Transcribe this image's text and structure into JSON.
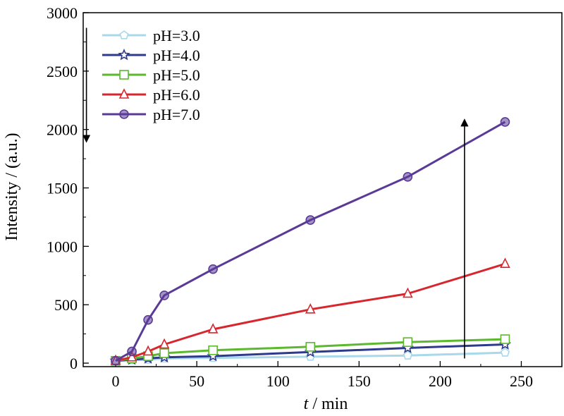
{
  "chart_data": {
    "type": "line",
    "xlabel_italic": "t",
    "xlabel_rest": " / min",
    "ylabel": "Intensity / (a.u.)",
    "xlim": [
      -20,
      275
    ],
    "ylim": [
      -30,
      3000
    ],
    "xticks": [
      0,
      50,
      100,
      150,
      200,
      250
    ],
    "yticks": [
      0,
      500,
      1000,
      1500,
      2000,
      2500,
      3000
    ],
    "grid": false,
    "legend_position": "top-left",
    "x": [
      0,
      10,
      20,
      30,
      60,
      120,
      180,
      240
    ],
    "series": [
      {
        "name": "pH=3.0",
        "color": "#a8d8ea",
        "marker": "pentagon",
        "values": [
          20,
          25,
          30,
          40,
          45,
          55,
          65,
          90
        ]
      },
      {
        "name": "pH=4.0",
        "color": "#2e3a8c",
        "marker": "star",
        "values": [
          20,
          30,
          40,
          50,
          60,
          95,
          130,
          160
        ]
      },
      {
        "name": "pH=5.0",
        "color": "#5cb82e",
        "marker": "square",
        "values": [
          20,
          40,
          60,
          85,
          110,
          140,
          180,
          205
        ]
      },
      {
        "name": "pH=6.0",
        "color": "#d8262e",
        "marker": "triangle",
        "values": [
          20,
          50,
          100,
          160,
          290,
          460,
          595,
          850
        ]
      },
      {
        "name": "pH=7.0",
        "color": "#5a3a96",
        "marker": "circle",
        "values": [
          20,
          100,
          370,
          580,
          805,
          1225,
          1595,
          2065
        ]
      }
    ],
    "annotations": [
      {
        "type": "arrow",
        "direction": "down",
        "x": -18,
        "y_from": 2870,
        "y_to": 1920
      },
      {
        "type": "arrow",
        "direction": "up",
        "x": 215,
        "y_from": 40,
        "y_to": 2060
      }
    ]
  }
}
